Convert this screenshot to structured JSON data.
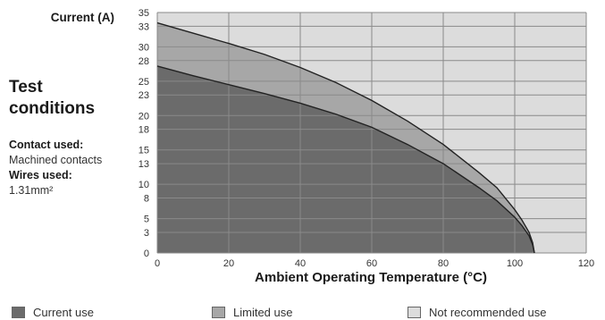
{
  "side_panel": {
    "heading_line1": "Test",
    "heading_line2": "conditions",
    "contact_label": "Contact used:",
    "contact_value": "Machined contacts",
    "wires_label": "Wires used:",
    "wires_value": "1.31mm²"
  },
  "colors": {
    "current_use": "#6b6b6b",
    "limited_use": "#a7a7a7",
    "not_recommended_use": "#dcdcdc",
    "grid": "#8a8a8a",
    "curve": "#222222"
  },
  "chart_data": {
    "type": "area",
    "title": "",
    "ylabel": "Current (A)",
    "xlabel": "Ambient Operating Temperature (°C)",
    "xlim": [
      0,
      120
    ],
    "ylim": [
      0,
      35
    ],
    "grid": true,
    "legend_position": "bottom",
    "x_ticks": [
      0,
      20,
      40,
      60,
      80,
      100,
      120
    ],
    "y_ticks": [
      0,
      3,
      5,
      8,
      10,
      13,
      15,
      18,
      20,
      23,
      25,
      28,
      30,
      33,
      35
    ],
    "series": [
      {
        "name": "Current use",
        "x": [
          0,
          10,
          20,
          30,
          40,
          50,
          60,
          70,
          80,
          90,
          95,
          100,
          102,
          104,
          105,
          105.5
        ],
        "values": [
          27.2,
          25.8,
          24.5,
          23.2,
          21.8,
          20.2,
          18.3,
          15.8,
          13,
          9.5,
          7.6,
          5.2,
          4,
          2.5,
          1.2,
          0
        ]
      },
      {
        "name": "Limited use",
        "x": [
          0,
          10,
          20,
          30,
          40,
          50,
          60,
          70,
          80,
          90,
          95,
          100,
          102,
          104,
          105,
          105.5
        ],
        "values": [
          33.5,
          32,
          30.5,
          28.9,
          27,
          24.8,
          22.2,
          19.2,
          15.8,
          11.7,
          9.5,
          6.3,
          4.8,
          3,
          1.5,
          0
        ]
      },
      {
        "name": "Not recommended use",
        "x": [
          0,
          120
        ],
        "values": [
          35,
          35
        ]
      }
    ]
  }
}
